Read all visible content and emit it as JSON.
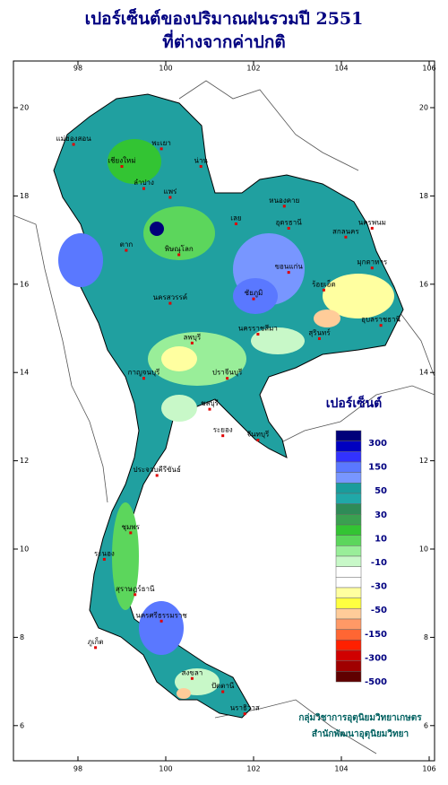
{
  "header": {
    "title_line1": "เปอร์เซ็นต์ของปริมาณฝนรวมปี 2551",
    "title_line2": "ที่ต่างจากค่าปกติ"
  },
  "map": {
    "lon_ticks": [
      98,
      100,
      102,
      104,
      106
    ],
    "lat_ticks": [
      20,
      18,
      16,
      14,
      12,
      10,
      8,
      6
    ],
    "provinces": [
      {
        "name": "เชียงใหม่",
        "lon": 99.0,
        "lat": 18.8
      },
      {
        "name": "แม่ฮ่องสอน",
        "lon": 97.9,
        "lat": 19.3
      },
      {
        "name": "พะเยา",
        "lon": 99.9,
        "lat": 19.2
      },
      {
        "name": "น่าน",
        "lon": 100.8,
        "lat": 18.8
      },
      {
        "name": "ลำปาง",
        "lon": 99.5,
        "lat": 18.3
      },
      {
        "name": "แพร่",
        "lon": 100.1,
        "lat": 18.1
      },
      {
        "name": "ตาก",
        "lon": 99.1,
        "lat": 16.9
      },
      {
        "name": "พิษณุโลก",
        "lon": 100.3,
        "lat": 16.8
      },
      {
        "name": "เลย",
        "lon": 101.6,
        "lat": 17.5
      },
      {
        "name": "อุดรธานี",
        "lon": 102.8,
        "lat": 17.4
      },
      {
        "name": "หนองคาย",
        "lon": 102.7,
        "lat": 17.9
      },
      {
        "name": "นครพนม",
        "lon": 104.7,
        "lat": 17.4
      },
      {
        "name": "สกลนคร",
        "lon": 104.1,
        "lat": 17.2
      },
      {
        "name": "ขอนแก่น",
        "lon": 102.8,
        "lat": 16.4
      },
      {
        "name": "มุกดาหาร",
        "lon": 104.7,
        "lat": 16.5
      },
      {
        "name": "ชัยภูมิ",
        "lon": 102.0,
        "lat": 15.8
      },
      {
        "name": "ร้อยเอ็ด",
        "lon": 103.6,
        "lat": 16.0
      },
      {
        "name": "นครสวรรค์",
        "lon": 100.1,
        "lat": 15.7
      },
      {
        "name": "นครราชสีมา",
        "lon": 102.1,
        "lat": 15.0
      },
      {
        "name": "สุรินทร์",
        "lon": 103.5,
        "lat": 14.9
      },
      {
        "name": "อุบลราชธานี",
        "lon": 104.9,
        "lat": 15.2
      },
      {
        "name": "ลพบุรี",
        "lon": 100.6,
        "lat": 14.8
      },
      {
        "name": "กาญจนบุรี",
        "lon": 99.5,
        "lat": 14.0
      },
      {
        "name": "ปราจีนบุรี",
        "lon": 101.4,
        "lat": 14.0
      },
      {
        "name": "ชลบุรี",
        "lon": 101.0,
        "lat": 13.3
      },
      {
        "name": "ระยอง",
        "lon": 101.3,
        "lat": 12.7
      },
      {
        "name": "จันทบุรี",
        "lon": 102.1,
        "lat": 12.6
      },
      {
        "name": "ประจวบคีรีขันธ์",
        "lon": 99.8,
        "lat": 11.8
      },
      {
        "name": "ชุมพร",
        "lon": 99.2,
        "lat": 10.5
      },
      {
        "name": "ระนอง",
        "lon": 98.6,
        "lat": 9.9
      },
      {
        "name": "สุราษฎร์ธานี",
        "lon": 99.3,
        "lat": 9.1
      },
      {
        "name": "นครศรีธรรมราช",
        "lon": 99.9,
        "lat": 8.5
      },
      {
        "name": "ภูเก็ต",
        "lon": 98.4,
        "lat": 7.9
      },
      {
        "name": "สงขลา",
        "lon": 100.6,
        "lat": 7.2
      },
      {
        "name": "ปัตตานี",
        "lon": 101.3,
        "lat": 6.9
      },
      {
        "name": "นราธิวาส",
        "lon": 101.8,
        "lat": 6.4
      }
    ]
  },
  "legend": {
    "title": "เปอร์เซ็นต์",
    "colors": [
      "#00007a",
      "#0000c0",
      "#3232ff",
      "#5a78ff",
      "#7896ff",
      "#1a9c9c",
      "#20a8a8",
      "#2e8b57",
      "#3aa050",
      "#33c433",
      "#5cd65c",
      "#99ee99",
      "#c8f8c8",
      "#ffffff",
      "#ffffff",
      "#ffffa0",
      "#ffff40",
      "#ffcc99",
      "#ff9966",
      "#ff6633",
      "#ff2000",
      "#d00000",
      "#a00000",
      "#600000"
    ],
    "labels": [
      300,
      150,
      50,
      30,
      10,
      -10,
      -30,
      -50,
      -150,
      -300,
      -500
    ]
  },
  "credit": {
    "line1": "กลุ่มวิชาการอุตุนิยมวิทยาเกษตร",
    "line2": "สำนักพัฒนาอุตุนิยมวิทยา"
  }
}
